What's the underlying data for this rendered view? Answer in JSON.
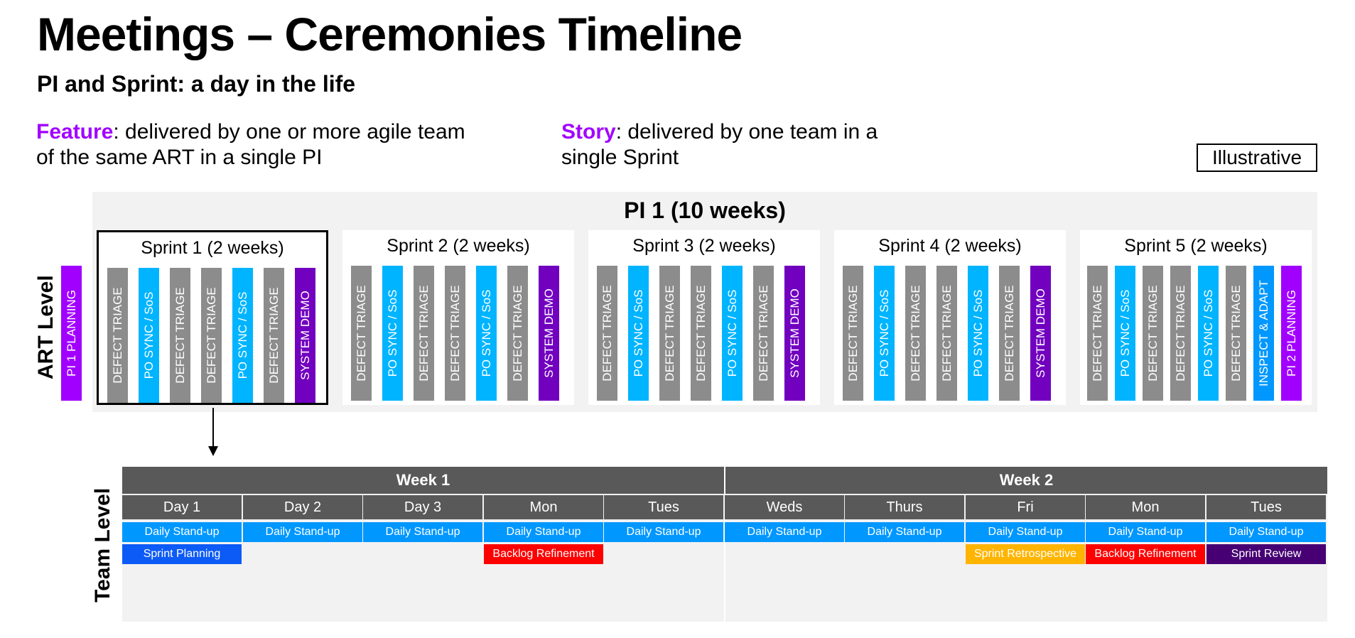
{
  "header": {
    "title": "Meetings – Ceremonies Timeline",
    "subtitle": "PI and Sprint: a day in the life"
  },
  "definitions": {
    "feature": {
      "term": "Feature",
      "text": ": delivered by one or more agile team of the same ART in a single PI"
    },
    "story": {
      "term": "Story",
      "text": ": delivered by one team in a single Sprint"
    }
  },
  "illustrative_label": "Illustrative",
  "colors": {
    "purple_accent": "#a100ff",
    "defect_gray": "#8c8c8c",
    "po_sync_cyan": "#00b4ff",
    "system_demo_purple": "#7100bf",
    "inspect_adapt_blue": "#0097ff",
    "header_dark_gray": "#595959",
    "panel_light_gray": "#f2f2f2"
  },
  "art_level": {
    "label": "ART Level",
    "pi_title": "PI 1 (10 weeks)",
    "pi1_planning": "PI 1 PLANNING",
    "sprints": [
      {
        "title": "Sprint 1 (2 weeks)",
        "selected": true,
        "ceremonies": [
          "DEFECT TRIAGE",
          "PO SYNC / SoS",
          "DEFECT TRIAGE",
          "DEFECT TRIAGE",
          "PO SYNC / SoS",
          "DEFECT TRIAGE",
          "SYSTEM DEMO"
        ]
      },
      {
        "title": "Sprint 2 (2 weeks)",
        "selected": false,
        "ceremonies": [
          "DEFECT TRIAGE",
          "PO SYNC / SoS",
          "DEFECT TRIAGE",
          "DEFECT TRIAGE",
          "PO SYNC / SoS",
          "DEFECT TRIAGE",
          "SYSTEM DEMO"
        ]
      },
      {
        "title": "Sprint 3 (2 weeks)",
        "selected": false,
        "ceremonies": [
          "DEFECT TRIAGE",
          "PO SYNC / SoS",
          "DEFECT TRIAGE",
          "DEFECT TRIAGE",
          "PO SYNC / SoS",
          "DEFECT TRIAGE",
          "SYSTEM DEMO"
        ]
      },
      {
        "title": "Sprint 4 (2 weeks)",
        "selected": false,
        "ceremonies": [
          "DEFECT TRIAGE",
          "PO SYNC / SoS",
          "DEFECT TRIAGE",
          "DEFECT TRIAGE",
          "PO SYNC / SoS",
          "DEFECT TRIAGE",
          "SYSTEM DEMO"
        ]
      },
      {
        "title": "Sprint 5 (2 weeks)",
        "selected": false,
        "ceremonies": [
          "DEFECT TRIAGE",
          "PO SYNC / SoS",
          "DEFECT TRIAGE",
          "DEFECT TRIAGE",
          "PO SYNC / SoS",
          "DEFECT TRIAGE",
          "INSPECT & ADAPT",
          "PI 2 PLANNING"
        ]
      }
    ]
  },
  "team_level": {
    "label": "Team Level",
    "weeks": [
      "Week 1",
      "Week 2"
    ],
    "days": [
      "Day 1",
      "Day 2",
      "Day 3",
      "Mon",
      "Tues",
      "Weds",
      "Thurs",
      "Fri",
      "Mon",
      "Tues"
    ],
    "standup": "Daily Stand-up",
    "events": [
      {
        "day": 0,
        "label": "Sprint Planning",
        "color": "#0d5bf7"
      },
      {
        "day": 3,
        "label": "Backlog Refinement",
        "color": "#ff0000"
      },
      {
        "day": 7,
        "label": "Sprint Retrospective",
        "color": "#ffb400"
      },
      {
        "day": 8,
        "label": "Backlog Refinement",
        "color": "#ff0000"
      },
      {
        "day": 9,
        "label": "Sprint Review",
        "color": "#460073"
      }
    ]
  }
}
